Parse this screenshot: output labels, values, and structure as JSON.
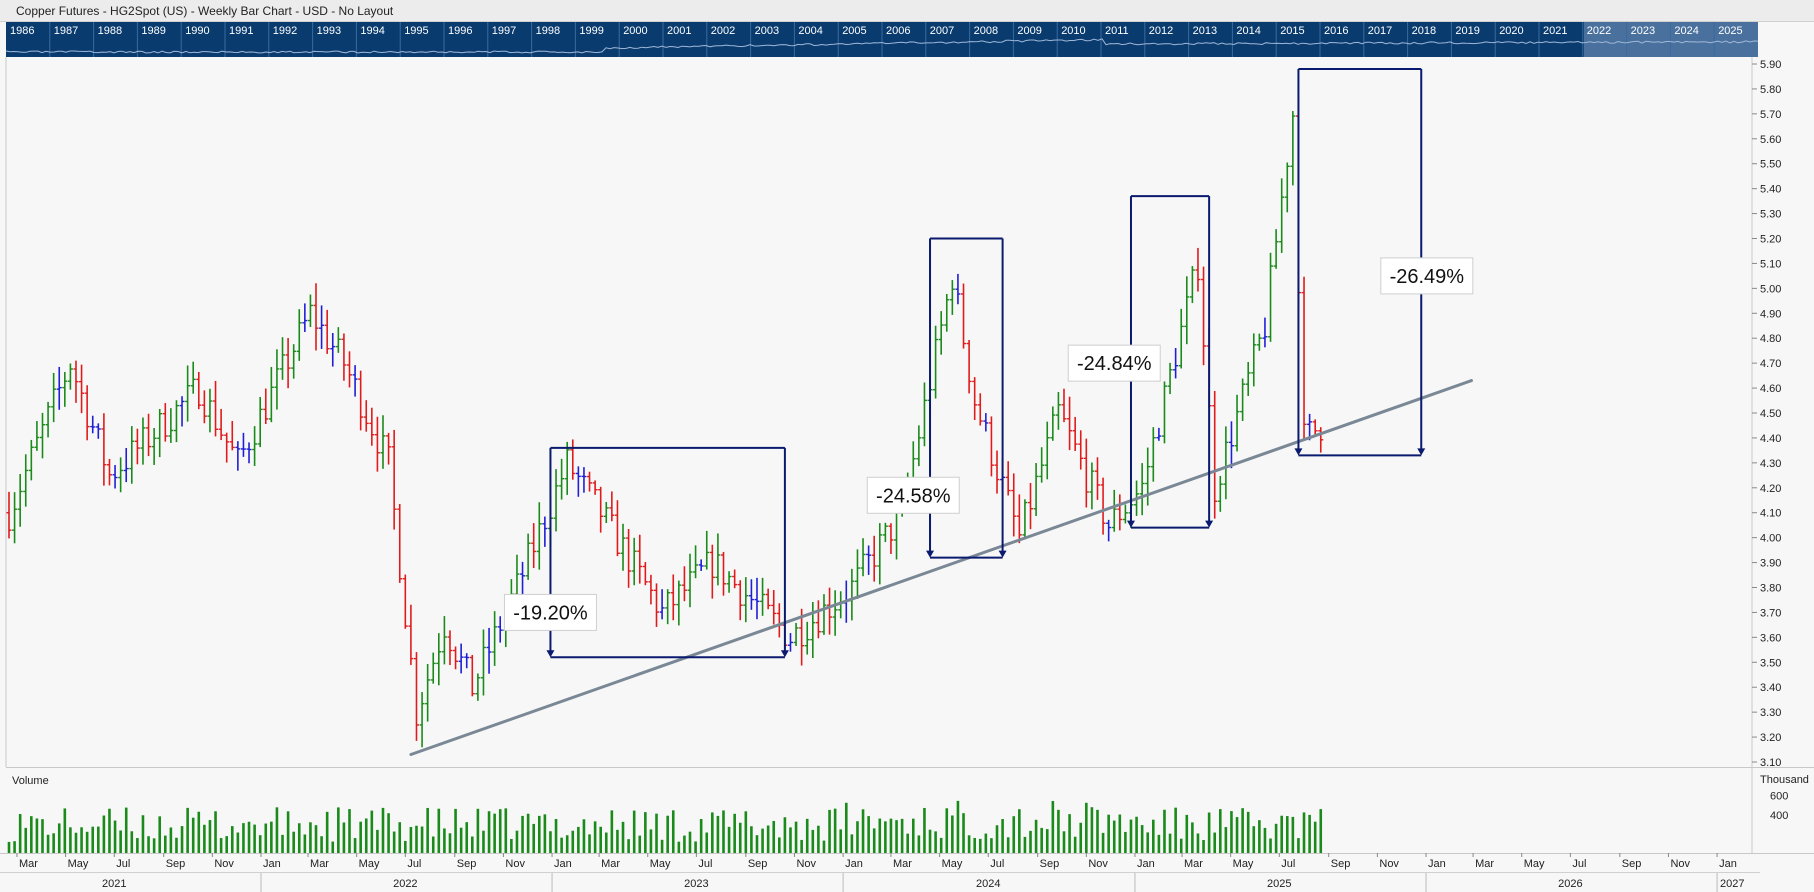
{
  "window": {
    "title": "Copper Futures - HG2Spot (US) - Weekly Bar Chart - USD - No Layout"
  },
  "overview": {
    "years": [
      "1986",
      "1987",
      "1988",
      "1989",
      "1990",
      "1991",
      "1992",
      "1993",
      "1994",
      "1995",
      "1996",
      "1997",
      "1998",
      "1999",
      "2000",
      "2001",
      "2002",
      "2003",
      "2004",
      "2005",
      "2006",
      "2007",
      "2008",
      "2009",
      "2010",
      "2011",
      "2012",
      "2013",
      "2014",
      "2015",
      "2016",
      "2017",
      "2018",
      "2019",
      "2020",
      "2021",
      "2022",
      "2023",
      "2024",
      "2025"
    ],
    "colors": {
      "background": "#0a3b6e",
      "selection": "#7f9ec4",
      "text": "#ffffff"
    }
  },
  "chart_data": {
    "type": "bar",
    "symbol": "HG2Spot",
    "colors": {
      "up": "#1a8a1a",
      "down": "#e01b1b",
      "neutral": "#1f1fd6",
      "trendline": "#7a8896",
      "measure": "#0a1a6e",
      "volume": "#1a8a1a"
    },
    "price_axis": {
      "ylim": [
        3.1,
        5.9
      ],
      "ticks": [
        "3.10",
        "3.20",
        "3.30",
        "3.40",
        "3.50",
        "3.60",
        "3.70",
        "3.80",
        "3.90",
        "4.00",
        "4.10",
        "4.20",
        "4.30",
        "4.40",
        "4.50",
        "4.60",
        "4.70",
        "4.80",
        "4.90",
        "5.00",
        "5.10",
        "5.20",
        "5.30",
        "5.40",
        "5.50",
        "5.60",
        "5.70",
        "5.80",
        "5.90"
      ]
    },
    "time_axis": {
      "start": "2021-02-19",
      "end": "2027-02-05",
      "month_ticks": [
        {
          "label": "Mar",
          "date": "2021-03-01"
        },
        {
          "label": "May",
          "date": "2021-05-01"
        },
        {
          "label": "Jul",
          "date": "2021-07-01"
        },
        {
          "label": "Sep",
          "date": "2021-09-01"
        },
        {
          "label": "Nov",
          "date": "2021-11-01"
        },
        {
          "label": "Jan",
          "date": "2022-01-01"
        },
        {
          "label": "Mar",
          "date": "2022-03-01"
        },
        {
          "label": "May",
          "date": "2022-05-01"
        },
        {
          "label": "Jul",
          "date": "2022-07-01"
        },
        {
          "label": "Sep",
          "date": "2022-09-01"
        },
        {
          "label": "Nov",
          "date": "2022-11-01"
        },
        {
          "label": "Jan",
          "date": "2023-01-01"
        },
        {
          "label": "Mar",
          "date": "2023-03-01"
        },
        {
          "label": "May",
          "date": "2023-05-01"
        },
        {
          "label": "Jul",
          "date": "2023-07-01"
        },
        {
          "label": "Sep",
          "date": "2023-09-01"
        },
        {
          "label": "Nov",
          "date": "2023-11-01"
        },
        {
          "label": "Jan",
          "date": "2024-01-01"
        },
        {
          "label": "Mar",
          "date": "2024-03-01"
        },
        {
          "label": "May",
          "date": "2024-05-01"
        },
        {
          "label": "Jul",
          "date": "2024-07-01"
        },
        {
          "label": "Sep",
          "date": "2024-09-01"
        },
        {
          "label": "Nov",
          "date": "2024-11-01"
        },
        {
          "label": "Jan",
          "date": "2025-01-01"
        },
        {
          "label": "Mar",
          "date": "2025-03-01"
        },
        {
          "label": "May",
          "date": "2025-05-01"
        },
        {
          "label": "Jul",
          "date": "2025-07-01"
        },
        {
          "label": "Sep",
          "date": "2025-09-01"
        },
        {
          "label": "Nov",
          "date": "2025-11-01"
        },
        {
          "label": "Jan",
          "date": "2026-01-01"
        },
        {
          "label": "Mar",
          "date": "2026-03-01"
        },
        {
          "label": "May",
          "date": "2026-05-01"
        },
        {
          "label": "Jul",
          "date": "2026-07-01"
        },
        {
          "label": "Sep",
          "date": "2026-09-01"
        },
        {
          "label": "Nov",
          "date": "2026-11-01"
        },
        {
          "label": "Jan",
          "date": "2027-01-01"
        }
      ],
      "year_ticks": [
        {
          "label": "2021",
          "date": "2021-07-01"
        },
        {
          "label": "2022",
          "date": "2022-07-01"
        },
        {
          "label": "2023",
          "date": "2023-07-01"
        },
        {
          "label": "2024",
          "date": "2024-07-01"
        },
        {
          "label": "2025",
          "date": "2025-07-01"
        },
        {
          "label": "2026",
          "date": "2026-07-01"
        },
        {
          "label": "2027",
          "date": "2027-01-20"
        }
      ]
    },
    "price_anchors": [
      {
        "date": "2021-02-19",
        "close": 4.1
      },
      {
        "date": "2021-05-07",
        "close": 4.7
      },
      {
        "date": "2021-06-25",
        "close": 4.25
      },
      {
        "date": "2021-08-13",
        "close": 4.4
      },
      {
        "date": "2021-10-15",
        "close": 4.6
      },
      {
        "date": "2021-12-03",
        "close": 4.3
      },
      {
        "date": "2022-03-04",
        "close": 4.9
      },
      {
        "date": "2022-04-15",
        "close": 4.7
      },
      {
        "date": "2022-06-10",
        "close": 4.3
      },
      {
        "date": "2022-07-15",
        "close": 3.3
      },
      {
        "date": "2022-08-19",
        "close": 3.65
      },
      {
        "date": "2022-09-23",
        "close": 3.4
      },
      {
        "date": "2022-11-18",
        "close": 3.8
      },
      {
        "date": "2023-01-20",
        "close": 4.3
      },
      {
        "date": "2023-03-03",
        "close": 4.1
      },
      {
        "date": "2023-05-19",
        "close": 3.7
      },
      {
        "date": "2023-07-21",
        "close": 3.9
      },
      {
        "date": "2023-10-27",
        "close": 3.6
      },
      {
        "date": "2024-01-12",
        "close": 3.8
      },
      {
        "date": "2024-03-15",
        "close": 4.1
      },
      {
        "date": "2024-05-17",
        "close": 5.05
      },
      {
        "date": "2024-06-14",
        "close": 4.55
      },
      {
        "date": "2024-08-09",
        "close": 4.0
      },
      {
        "date": "2024-09-27",
        "close": 4.5
      },
      {
        "date": "2024-11-29",
        "close": 4.05
      },
      {
        "date": "2025-01-10",
        "close": 4.2
      },
      {
        "date": "2025-03-21",
        "close": 5.1
      },
      {
        "date": "2025-04-11",
        "close": 4.2
      },
      {
        "date": "2025-06-13",
        "close": 4.85
      },
      {
        "date": "2025-07-18",
        "close": 5.7
      },
      {
        "date": "2025-08-01",
        "close": 4.4
      },
      {
        "date": "2025-08-22",
        "close": 4.45
      }
    ],
    "bar_range": {
      "start": "2021-02-19",
      "end": "2025-08-22",
      "interval": "weekly"
    },
    "trendline": {
      "from": {
        "date": "2022-07-08",
        "price": 3.13
      },
      "to": {
        "date": "2026-02-27",
        "price": 4.63
      }
    },
    "measurements": [
      {
        "label": "-19.20%",
        "from_date": "2022-12-30",
        "to_date": "2023-10-20",
        "high": 4.36,
        "low": 3.52,
        "text_date": "2022-12-30",
        "text_price": 3.7
      },
      {
        "label": "-24.58%",
        "from_date": "2024-04-19",
        "to_date": "2024-07-19",
        "high": 5.2,
        "low": 3.92,
        "text_date": "2024-03-29",
        "text_price": 4.17
      },
      {
        "label": "-24.84%",
        "from_date": "2024-12-27",
        "to_date": "2025-04-04",
        "high": 5.37,
        "low": 4.04,
        "text_date": "2024-12-06",
        "text_price": 4.7
      },
      {
        "label": "-26.49%",
        "from_date": "2025-07-25",
        "to_date": "2025-12-26",
        "high": 5.88,
        "low": 4.33,
        "text_date": "2026-01-02",
        "text_price": 5.05
      }
    ],
    "volume": {
      "label": "Volume",
      "unit": "Thousand",
      "ticks": [
        "600",
        "400"
      ],
      "ylim": [
        0,
        900
      ],
      "bar_range": {
        "start": "2021-02-19",
        "end": "2025-08-22",
        "interval": "weekly"
      }
    }
  }
}
